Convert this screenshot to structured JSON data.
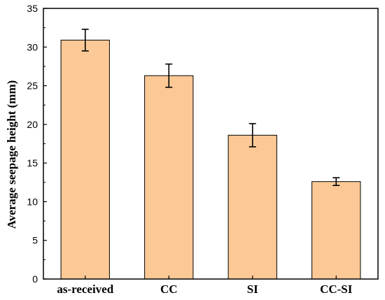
{
  "chart_data": {
    "type": "bar",
    "title": "",
    "xlabel": "",
    "ylabel": "Average seepage height (mm)",
    "categories": [
      "as-received",
      "CC",
      "SI",
      "CC-SI"
    ],
    "values": [
      30.9,
      26.3,
      18.6,
      12.6
    ],
    "errors": [
      1.4,
      1.5,
      1.5,
      0.5
    ],
    "ylim": [
      0,
      35
    ],
    "yticks": [
      0,
      5,
      10,
      15,
      20,
      25,
      30,
      35
    ],
    "grid": false,
    "legend": "none",
    "colors": {
      "bar_fill": "#FCC996",
      "bar_stroke": "#000000",
      "axis": "#000000"
    }
  }
}
